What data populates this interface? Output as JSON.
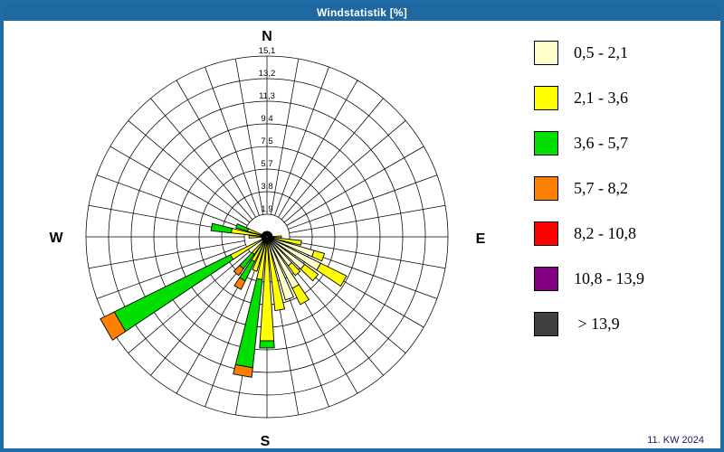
{
  "header": {
    "title": "Windstatistik [%]",
    "bg_color": "#2068a2"
  },
  "footer": {
    "label": "11. KW 2024"
  },
  "chart_data": {
    "type": "bar",
    "subtype": "windrose-polar-stacked-bar",
    "title": "Windstatistik [%]",
    "units": "%",
    "period": "11. KW 2024",
    "compass_labels": {
      "north": "N",
      "east": "E",
      "south": "S",
      "west": "W"
    },
    "radial_tick_labels": [
      "1,9",
      "3,8",
      "5,7",
      "7,5",
      "9,4",
      "11,3",
      "13,2",
      "15,1"
    ],
    "radial_tick_values": [
      1.9,
      3.8,
      5.7,
      7.5,
      9.4,
      11.3,
      13.2,
      15.1
    ],
    "radial_max": 15.1,
    "rings": 8,
    "sector_step_deg": 10,
    "grid": true,
    "grid_color": "#000000",
    "legend_position": "right",
    "legend": [
      {
        "label": "0,5 - 2,1",
        "color": "#FFFFCC"
      },
      {
        "label": "2,1 - 3,6",
        "color": "#FFFF00"
      },
      {
        "label": "3,6 - 5,7",
        "color": "#00DF00"
      },
      {
        "label": "5,7 - 8,2",
        "color": "#FF8000"
      },
      {
        "label": "8,2 - 10,8",
        "color": "#FF0000"
      },
      {
        "label": "10,8 - 13,9",
        "color": "#800080"
      },
      {
        "label": " > 13,9",
        "color": "#404040"
      }
    ],
    "bars": [
      {
        "dir": 90,
        "segments": [
          0.4,
          0.8
        ]
      },
      {
        "dir": 100,
        "segments": [
          0.6,
          2.3
        ]
      },
      {
        "dir": 110,
        "segments": [
          4.1,
          0.9
        ]
      },
      {
        "dir": 120,
        "segments": [
          5.0,
          2.4
        ]
      },
      {
        "dir": 130,
        "segments": [
          3.9,
          1.4
        ]
      },
      {
        "dir": 140,
        "segments": [
          3.0,
          1.0
        ]
      },
      {
        "dir": 150,
        "segments": [
          4.8,
          1.5
        ]
      },
      {
        "dir": 160,
        "segments": [
          5.5
        ]
      },
      {
        "dir": 170,
        "segments": [
          0.5,
          5.7
        ]
      },
      {
        "dir": 180,
        "segments": [
          0.5,
          8.2,
          0.6
        ]
      },
      {
        "dir": 190,
        "segments": [
          0.5,
          3.1,
          7.4,
          0.8
        ]
      },
      {
        "dir": 200,
        "segments": [
          0.5,
          2.5
        ]
      },
      {
        "dir": 210,
        "segments": [
          0.5,
          1.8,
          1.8,
          0.8
        ]
      },
      {
        "dir": 220,
        "segments": [
          0.5,
          1.3,
          1.5,
          0.7
        ]
      },
      {
        "dir": 240,
        "segments": [
          0.5,
          2.9,
          10.8,
          1.3
        ]
      },
      {
        "dir": 270,
        "segments": [
          0.3,
          1.2
        ]
      },
      {
        "dir": 280,
        "segments": [
          0.4,
          2.6,
          1.7
        ]
      },
      {
        "dir": 290,
        "segments": [
          0.3,
          1.4,
          1.0
        ]
      }
    ],
    "calm_stub_dirs": [
      0,
      10,
      20,
      30,
      40,
      50,
      60,
      70,
      80,
      230,
      250,
      260,
      300,
      310,
      320,
      330,
      340,
      350
    ],
    "calm_stub_value": 0.45
  }
}
